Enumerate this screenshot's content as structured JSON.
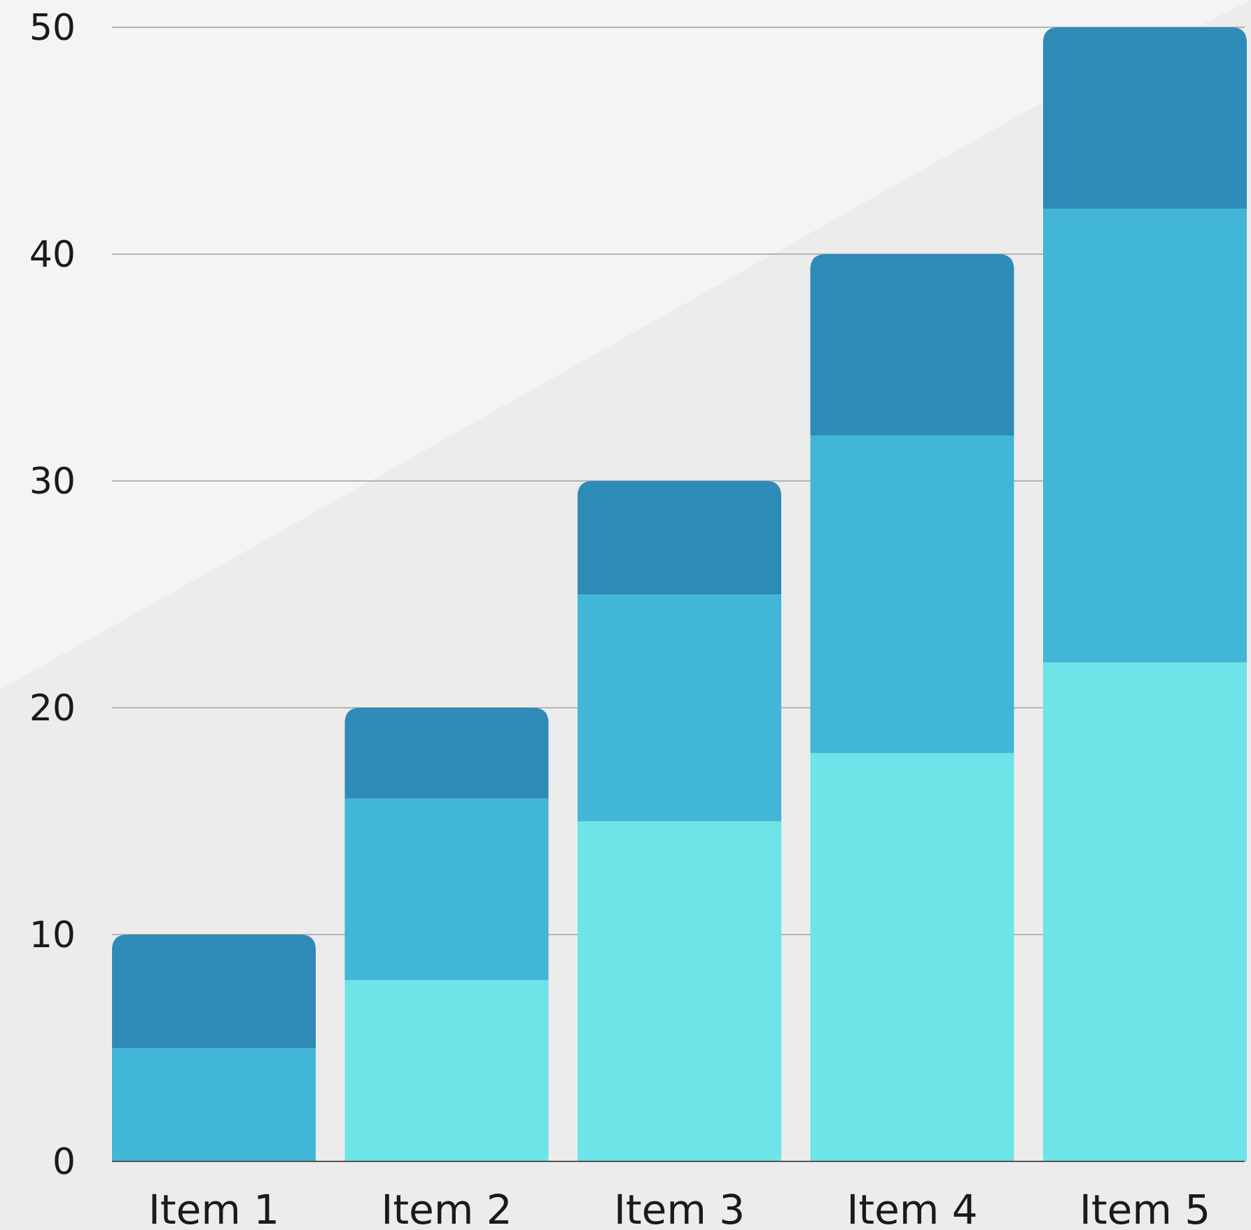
{
  "chart_data": {
    "type": "bar",
    "stacked": true,
    "categories": [
      "Item 1",
      "Item 2",
      "Item 3",
      "Item 4",
      "Item 5"
    ],
    "series": [
      {
        "values": [
          0,
          8,
          15,
          18,
          22
        ],
        "color": "#6ce4e8"
      },
      {
        "values": [
          5,
          8,
          10,
          14,
          20
        ],
        "color": "#42b6d6"
      },
      {
        "values": [
          5,
          4,
          5,
          8,
          8
        ],
        "color": "#2e8bb8"
      }
    ],
    "ylim": [
      0,
      50
    ],
    "yticks": [
      0,
      10,
      20,
      30,
      40,
      50
    ],
    "ytick_labels": [
      "0",
      "10",
      "20",
      "30",
      "40",
      "50"
    ],
    "grid": true,
    "title": "",
    "xlabel": "",
    "ylabel": ""
  },
  "colors": {
    "background": "#ececec",
    "background_light": "#f4f4f4",
    "gridline": "#b4b4b4",
    "axis": "#555555"
  }
}
